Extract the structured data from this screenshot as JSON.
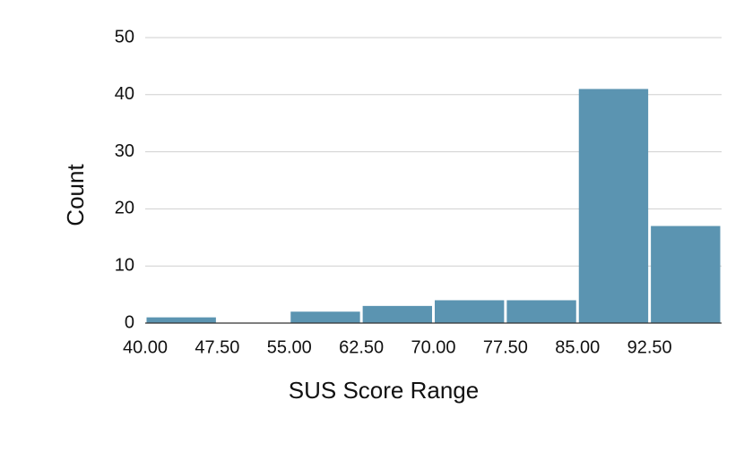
{
  "chart_data": {
    "type": "histogram",
    "x_label": "SUS Score Range",
    "y_label": "Count",
    "bins": [
      40,
      47.5,
      55,
      62.5,
      70,
      77.5,
      85,
      92.5,
      100
    ],
    "values": [
      1,
      0,
      2,
      3,
      4,
      4,
      41,
      17
    ],
    "color": "#5b94b1",
    "xlim": [
      40,
      100
    ],
    "xticks": [
      {
        "value": 40,
        "label": "40.00"
      },
      {
        "value": 47.5,
        "label": "47.50"
      },
      {
        "value": 55,
        "label": "55.00"
      },
      {
        "value": 62.5,
        "label": "62.50"
      },
      {
        "value": 70,
        "label": "70.00"
      },
      {
        "value": 77.5,
        "label": "77.50"
      },
      {
        "value": 85,
        "label": "85.00"
      },
      {
        "value": 92.5,
        "label": "92.50"
      }
    ],
    "ylim": [
      0,
      50
    ],
    "yticks": [
      0,
      10,
      20,
      30,
      40,
      50
    ],
    "grid": true
  }
}
